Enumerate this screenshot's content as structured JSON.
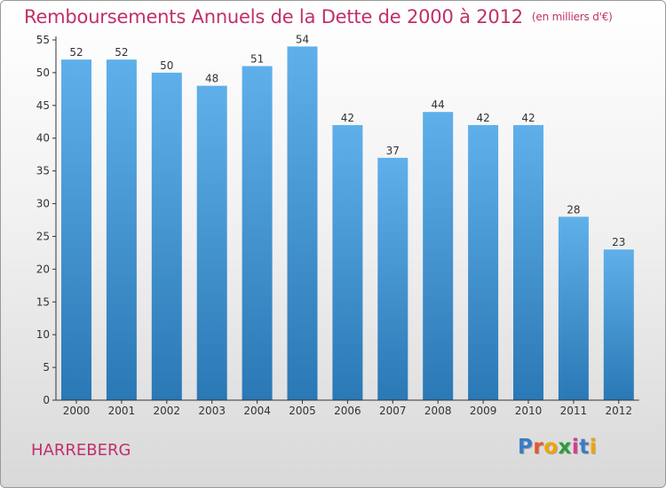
{
  "header": {
    "title": "Remboursements Annuels de la Dette de 2000 à 2012",
    "unit": "(en milliers d'€)"
  },
  "commune": "HARREBERG",
  "logo": {
    "text": "Proxiti",
    "letter_colors": [
      "#3a7cc5",
      "#e8542d",
      "#f2a300",
      "#2d9b3a",
      "#d63a8f",
      "#3a7cc5",
      "#f2a300"
    ]
  },
  "colors": {
    "title": "#c0306a",
    "bar_top": "#5fb0ea",
    "bar_bottom": "#2a78b5",
    "axis": "#333333"
  },
  "chart_data": {
    "type": "bar",
    "categories": [
      "2000",
      "2001",
      "2002",
      "2003",
      "2004",
      "2005",
      "2006",
      "2007",
      "2008",
      "2009",
      "2010",
      "2011",
      "2012"
    ],
    "values": [
      52,
      52,
      50,
      48,
      51,
      54,
      42,
      37,
      44,
      42,
      42,
      28,
      23
    ],
    "ylim": [
      0,
      55
    ],
    "yticks": [
      0,
      5,
      10,
      15,
      20,
      25,
      30,
      35,
      40,
      45,
      50,
      55
    ],
    "grid": false,
    "data_labels": true
  }
}
